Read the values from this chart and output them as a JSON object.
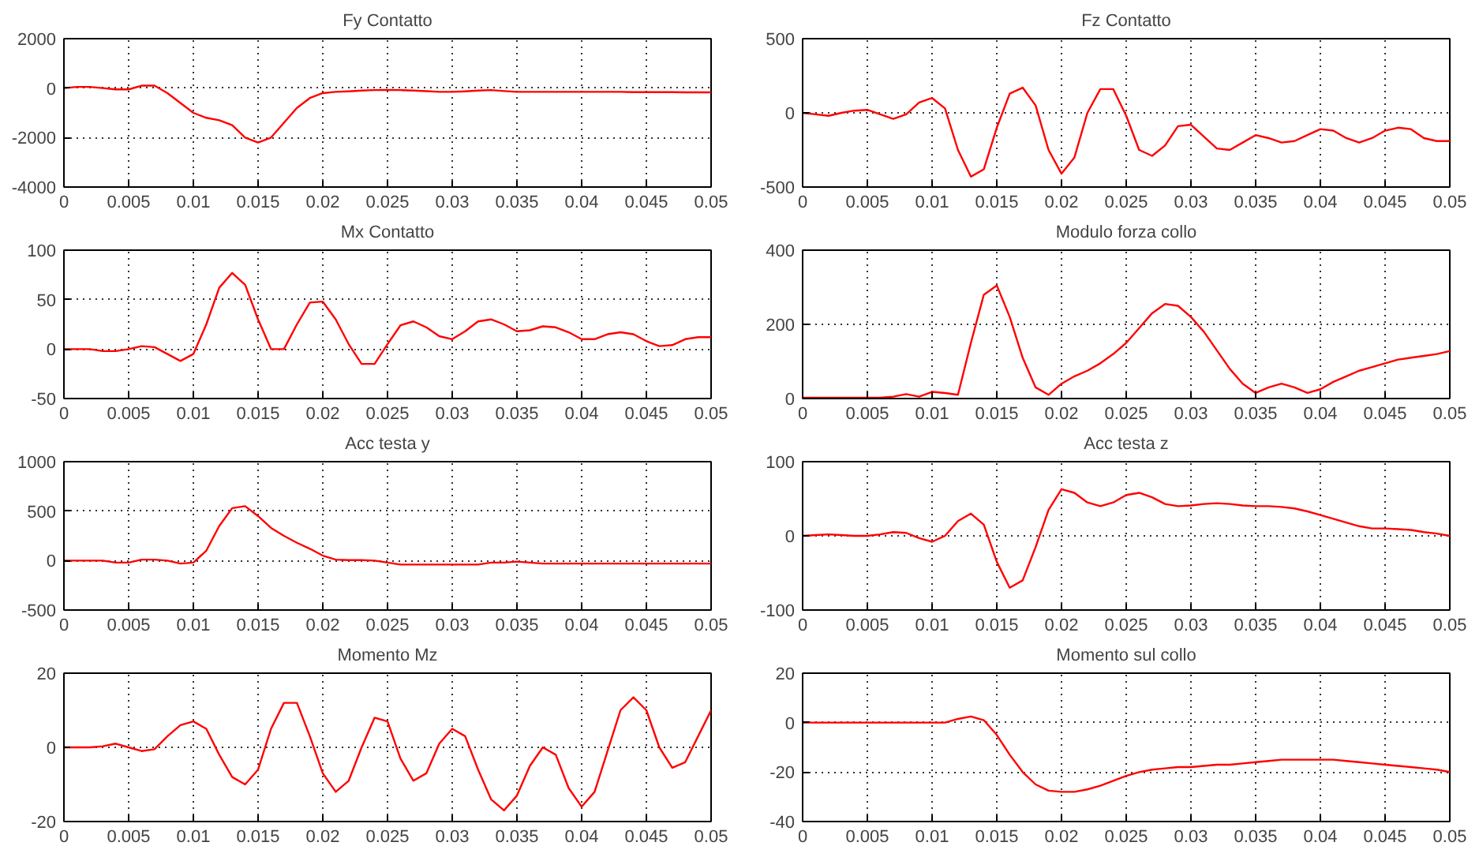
{
  "chart_data": [
    {
      "type": "line",
      "title": "Fy Contatto",
      "xlim": [
        0,
        0.05
      ],
      "xticks": [
        0,
        0.005,
        0.01,
        0.015,
        0.02,
        0.025,
        0.03,
        0.035,
        0.04,
        0.045,
        0.05
      ],
      "ylim": [
        -4000,
        2000
      ],
      "yticks": [
        -4000,
        -2000,
        0,
        2000
      ],
      "grid": true,
      "x": [
        0,
        0.001,
        0.002,
        0.003,
        0.004,
        0.005,
        0.006,
        0.007,
        0.008,
        0.009,
        0.01,
        0.011,
        0.012,
        0.013,
        0.014,
        0.015,
        0.016,
        0.017,
        0.018,
        0.019,
        0.02,
        0.021,
        0.022,
        0.023,
        0.024,
        0.025,
        0.026,
        0.027,
        0.028,
        0.029,
        0.03,
        0.031,
        0.032,
        0.033,
        0.034,
        0.035,
        0.036,
        0.037,
        0.038,
        0.039,
        0.04,
        0.041,
        0.042,
        0.043,
        0.044,
        0.045,
        0.046,
        0.047,
        0.048,
        0.049,
        0.05
      ],
      "series": [
        {
          "color": "#ff0000",
          "values": [
            0,
            50,
            50,
            0,
            -50,
            -50,
            100,
            100,
            -200,
            -600,
            -1000,
            -1200,
            -1300,
            -1500,
            -2000,
            -2200,
            -2000,
            -1400,
            -800,
            -400,
            -200,
            -150,
            -130,
            -100,
            -80,
            -70,
            -80,
            -100,
            -120,
            -150,
            -150,
            -130,
            -100,
            -80,
            -120,
            -150,
            -150,
            -150,
            -150,
            -150,
            -150,
            -150,
            -150,
            -150,
            -160,
            -160,
            -160,
            -160,
            -170,
            -170,
            -170
          ]
        }
      ]
    },
    {
      "type": "line",
      "title": "Fz Contatto",
      "xlim": [
        0,
        0.05
      ],
      "xticks": [
        0,
        0.005,
        0.01,
        0.015,
        0.02,
        0.025,
        0.03,
        0.035,
        0.04,
        0.045,
        0.05
      ],
      "ylim": [
        -500,
        500
      ],
      "yticks": [
        -500,
        0,
        500
      ],
      "grid": true,
      "x": [
        0,
        0.001,
        0.002,
        0.003,
        0.004,
        0.005,
        0.006,
        0.007,
        0.008,
        0.009,
        0.01,
        0.011,
        0.012,
        0.013,
        0.014,
        0.015,
        0.016,
        0.017,
        0.018,
        0.019,
        0.02,
        0.021,
        0.022,
        0.023,
        0.024,
        0.025,
        0.026,
        0.027,
        0.028,
        0.029,
        0.03,
        0.031,
        0.032,
        0.033,
        0.034,
        0.035,
        0.036,
        0.037,
        0.038,
        0.039,
        0.04,
        0.041,
        0.042,
        0.043,
        0.044,
        0.045,
        0.046,
        0.047,
        0.048,
        0.049,
        0.05
      ],
      "series": [
        {
          "color": "#ff0000",
          "values": [
            0,
            -10,
            -20,
            0,
            15,
            20,
            -10,
            -40,
            -10,
            70,
            100,
            30,
            -250,
            -430,
            -380,
            -100,
            130,
            170,
            50,
            -250,
            -410,
            -300,
            0,
            160,
            160,
            -20,
            -250,
            -290,
            -220,
            -90,
            -80,
            -160,
            -240,
            -250,
            -200,
            -150,
            -170,
            -200,
            -190,
            -150,
            -110,
            -120,
            -170,
            -200,
            -170,
            -120,
            -100,
            -110,
            -170,
            -190,
            -190
          ]
        }
      ]
    },
    {
      "type": "line",
      "title": "Mx Contatto",
      "xlim": [
        0,
        0.05
      ],
      "xticks": [
        0,
        0.005,
        0.01,
        0.015,
        0.02,
        0.025,
        0.03,
        0.035,
        0.04,
        0.045,
        0.05
      ],
      "ylim": [
        -50,
        100
      ],
      "yticks": [
        -50,
        0,
        50,
        100
      ],
      "grid": true,
      "x": [
        0,
        0.001,
        0.002,
        0.003,
        0.004,
        0.005,
        0.006,
        0.007,
        0.008,
        0.009,
        0.01,
        0.011,
        0.012,
        0.013,
        0.014,
        0.015,
        0.016,
        0.017,
        0.018,
        0.019,
        0.02,
        0.021,
        0.022,
        0.023,
        0.024,
        0.025,
        0.026,
        0.027,
        0.028,
        0.029,
        0.03,
        0.031,
        0.032,
        0.033,
        0.034,
        0.035,
        0.036,
        0.037,
        0.038,
        0.039,
        0.04,
        0.041,
        0.042,
        0.043,
        0.044,
        0.045,
        0.046,
        0.047,
        0.048,
        0.049,
        0.05
      ],
      "series": [
        {
          "color": "#ff0000",
          "values": [
            0,
            0,
            0,
            -2,
            -2,
            0,
            3,
            2,
            -5,
            -12,
            -5,
            25,
            62,
            77,
            65,
            30,
            0,
            0,
            25,
            47,
            48,
            30,
            5,
            -15,
            -15,
            5,
            24,
            28,
            22,
            13,
            10,
            18,
            28,
            30,
            25,
            18,
            19,
            23,
            22,
            17,
            10,
            10,
            15,
            17,
            15,
            8,
            3,
            4,
            10,
            12,
            12
          ]
        }
      ]
    },
    {
      "type": "line",
      "title": "Modulo forza collo",
      "xlim": [
        0,
        0.05
      ],
      "xticks": [
        0,
        0.005,
        0.01,
        0.015,
        0.02,
        0.025,
        0.03,
        0.035,
        0.04,
        0.045,
        0.05
      ],
      "ylim": [
        0,
        400
      ],
      "yticks": [
        0,
        200,
        400
      ],
      "grid": true,
      "x": [
        0,
        0.001,
        0.002,
        0.003,
        0.004,
        0.005,
        0.006,
        0.007,
        0.008,
        0.009,
        0.01,
        0.011,
        0.012,
        0.013,
        0.014,
        0.015,
        0.016,
        0.017,
        0.018,
        0.019,
        0.02,
        0.021,
        0.022,
        0.023,
        0.024,
        0.025,
        0.026,
        0.027,
        0.028,
        0.029,
        0.03,
        0.031,
        0.032,
        0.033,
        0.034,
        0.035,
        0.036,
        0.037,
        0.038,
        0.039,
        0.04,
        0.041,
        0.042,
        0.043,
        0.044,
        0.045,
        0.046,
        0.047,
        0.048,
        0.049,
        0.05
      ],
      "series": [
        {
          "color": "#ff0000",
          "values": [
            2,
            2,
            2,
            2,
            2,
            2,
            2,
            5,
            12,
            5,
            18,
            15,
            10,
            150,
            280,
            305,
            220,
            110,
            30,
            10,
            40,
            60,
            75,
            95,
            120,
            150,
            190,
            230,
            255,
            250,
            220,
            180,
            130,
            80,
            40,
            15,
            30,
            40,
            30,
            15,
            25,
            45,
            60,
            75,
            85,
            95,
            105,
            110,
            115,
            120,
            128
          ]
        }
      ]
    },
    {
      "type": "line",
      "title": "Acc testa y",
      "xlim": [
        0,
        0.05
      ],
      "xticks": [
        0,
        0.005,
        0.01,
        0.015,
        0.02,
        0.025,
        0.03,
        0.035,
        0.04,
        0.045,
        0.05
      ],
      "ylim": [
        -500,
        1000
      ],
      "yticks": [
        -500,
        0,
        500,
        1000
      ],
      "grid": true,
      "x": [
        0,
        0.001,
        0.002,
        0.003,
        0.004,
        0.005,
        0.006,
        0.007,
        0.008,
        0.009,
        0.01,
        0.011,
        0.012,
        0.013,
        0.014,
        0.015,
        0.016,
        0.017,
        0.018,
        0.019,
        0.02,
        0.021,
        0.022,
        0.023,
        0.024,
        0.025,
        0.026,
        0.027,
        0.028,
        0.029,
        0.03,
        0.031,
        0.032,
        0.033,
        0.034,
        0.035,
        0.036,
        0.037,
        0.038,
        0.039,
        0.04,
        0.041,
        0.042,
        0.043,
        0.044,
        0.045,
        0.046,
        0.047,
        0.048,
        0.049,
        0.05
      ],
      "series": [
        {
          "color": "#ff0000",
          "values": [
            0,
            0,
            0,
            0,
            -20,
            -20,
            10,
            10,
            0,
            -30,
            -20,
            100,
            350,
            530,
            550,
            450,
            330,
            250,
            180,
            120,
            50,
            10,
            5,
            5,
            0,
            -20,
            -40,
            -40,
            -40,
            -40,
            -40,
            -40,
            -40,
            -20,
            -20,
            -10,
            -20,
            -30,
            -30,
            -30,
            -30,
            -30,
            -30,
            -30,
            -30,
            -30,
            -30,
            -30,
            -30,
            -30,
            -30
          ]
        }
      ]
    },
    {
      "type": "line",
      "title": "Acc testa z",
      "xlim": [
        0,
        0.05
      ],
      "xticks": [
        0,
        0.005,
        0.01,
        0.015,
        0.02,
        0.025,
        0.03,
        0.035,
        0.04,
        0.045,
        0.05
      ],
      "ylim": [
        -100,
        100
      ],
      "yticks": [
        -100,
        0,
        100
      ],
      "grid": true,
      "x": [
        0,
        0.001,
        0.002,
        0.003,
        0.004,
        0.005,
        0.006,
        0.007,
        0.008,
        0.009,
        0.01,
        0.011,
        0.012,
        0.013,
        0.014,
        0.015,
        0.016,
        0.017,
        0.018,
        0.019,
        0.02,
        0.021,
        0.022,
        0.023,
        0.024,
        0.025,
        0.026,
        0.027,
        0.028,
        0.029,
        0.03,
        0.031,
        0.032,
        0.033,
        0.034,
        0.035,
        0.036,
        0.037,
        0.038,
        0.039,
        0.04,
        0.041,
        0.042,
        0.043,
        0.044,
        0.045,
        0.046,
        0.047,
        0.048,
        0.049,
        0.05
      ],
      "series": [
        {
          "color": "#ff0000",
          "values": [
            0,
            1,
            2,
            1,
            0,
            0,
            2,
            5,
            4,
            -3,
            -8,
            0,
            20,
            30,
            15,
            -35,
            -70,
            -60,
            -15,
            35,
            63,
            58,
            45,
            40,
            45,
            55,
            58,
            52,
            43,
            40,
            41,
            43,
            44,
            43,
            41,
            40,
            40,
            39,
            37,
            33,
            28,
            23,
            18,
            13,
            10,
            10,
            9,
            8,
            5,
            3,
            0
          ]
        }
      ]
    },
    {
      "type": "line",
      "title": "Momento Mz",
      "xlim": [
        0,
        0.05
      ],
      "xticks": [
        0,
        0.005,
        0.01,
        0.015,
        0.02,
        0.025,
        0.03,
        0.035,
        0.04,
        0.045,
        0.05
      ],
      "ylim": [
        -20,
        20
      ],
      "yticks": [
        -20,
        0,
        20
      ],
      "grid": true,
      "x": [
        0,
        0.001,
        0.002,
        0.003,
        0.004,
        0.005,
        0.006,
        0.007,
        0.008,
        0.009,
        0.01,
        0.011,
        0.012,
        0.013,
        0.014,
        0.015,
        0.016,
        0.017,
        0.018,
        0.019,
        0.02,
        0.021,
        0.022,
        0.023,
        0.024,
        0.025,
        0.026,
        0.027,
        0.028,
        0.029,
        0.03,
        0.031,
        0.032,
        0.033,
        0.034,
        0.035,
        0.036,
        0.037,
        0.038,
        0.039,
        0.04,
        0.041,
        0.042,
        0.043,
        0.044,
        0.045,
        0.046,
        0.047,
        0.048,
        0.049,
        0.05
      ],
      "series": [
        {
          "color": "#ff0000",
          "values": [
            0,
            0,
            0,
            0.3,
            1,
            0,
            -1,
            -0.5,
            3,
            6,
            7,
            5,
            -2,
            -8,
            -10,
            -6,
            5,
            12,
            12,
            3,
            -7,
            -12,
            -9,
            0,
            8,
            7,
            -3,
            -9,
            -7,
            1,
            5,
            3,
            -6,
            -14,
            -17,
            -13,
            -5,
            0,
            -2,
            -11,
            -16,
            -12,
            -1,
            10,
            13.5,
            10,
            0,
            -5.5,
            -4,
            3,
            10
          ]
        }
      ]
    },
    {
      "type": "line",
      "title": "Momento sul collo",
      "xlim": [
        0,
        0.05
      ],
      "xticks": [
        0,
        0.005,
        0.01,
        0.015,
        0.02,
        0.025,
        0.03,
        0.035,
        0.04,
        0.045,
        0.05
      ],
      "ylim": [
        -40,
        20
      ],
      "yticks": [
        -40,
        -20,
        0,
        20
      ],
      "grid": true,
      "x": [
        0,
        0.001,
        0.002,
        0.003,
        0.004,
        0.005,
        0.006,
        0.007,
        0.008,
        0.009,
        0.01,
        0.011,
        0.012,
        0.013,
        0.014,
        0.015,
        0.016,
        0.017,
        0.018,
        0.019,
        0.02,
        0.021,
        0.022,
        0.023,
        0.024,
        0.025,
        0.026,
        0.027,
        0.028,
        0.029,
        0.03,
        0.031,
        0.032,
        0.033,
        0.034,
        0.035,
        0.036,
        0.037,
        0.038,
        0.039,
        0.04,
        0.041,
        0.042,
        0.043,
        0.044,
        0.045,
        0.046,
        0.047,
        0.048,
        0.049,
        0.05
      ],
      "series": [
        {
          "color": "#ff0000",
          "values": [
            0,
            0,
            0,
            0,
            0,
            0,
            0,
            0,
            0,
            0,
            0,
            0,
            1.5,
            2.5,
            1,
            -5,
            -13,
            -20,
            -25,
            -27.5,
            -28,
            -28,
            -27,
            -25.5,
            -23.5,
            -21.5,
            -20,
            -19,
            -18.5,
            -18,
            -18,
            -17.5,
            -17,
            -17,
            -16.5,
            -16,
            -15.5,
            -15,
            -15,
            -15,
            -15,
            -15,
            -15.5,
            -16,
            -16.5,
            -17,
            -17.5,
            -18,
            -18.5,
            -19,
            -20
          ]
        }
      ]
    }
  ]
}
